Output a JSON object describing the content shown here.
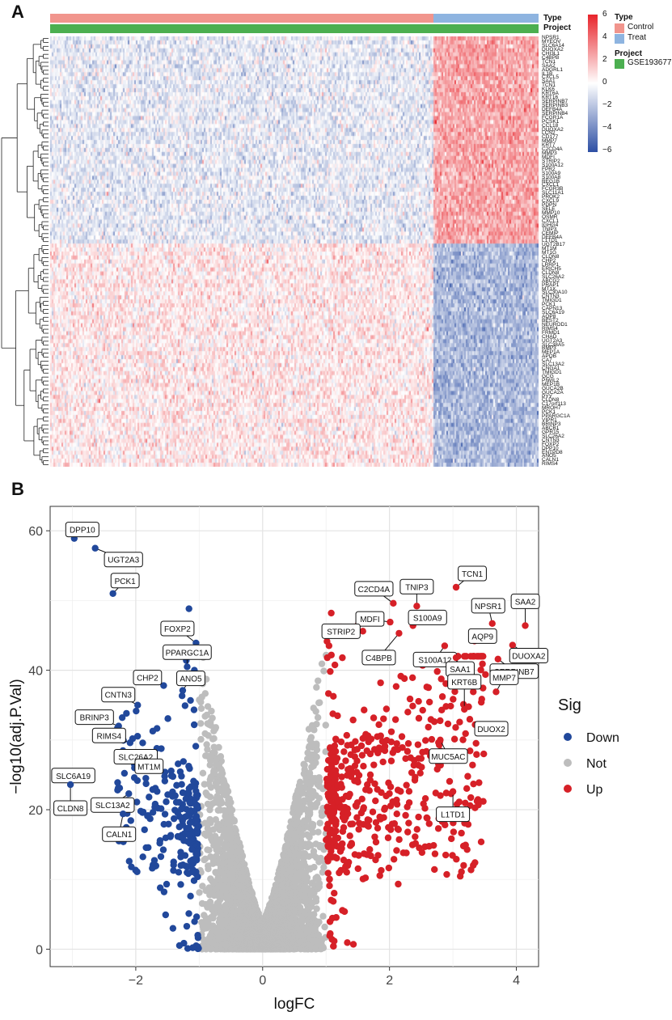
{
  "panels": {
    "a": "A",
    "b": "B"
  },
  "heatmap": {
    "annotation_rows": [
      "Type",
      "Project"
    ],
    "type_legend": {
      "title": "Type",
      "items": [
        {
          "label": "Control",
          "color": "#f1958d"
        },
        {
          "label": "Treat",
          "color": "#8eb4e0"
        }
      ]
    },
    "project_legend": {
      "title": "Project",
      "items": [
        {
          "label": "GSE193677",
          "color": "#4caf50"
        }
      ]
    },
    "colorbar": {
      "ticks": [
        "6",
        "4",
        "2",
        "0",
        "−2",
        "−4",
        "−6"
      ],
      "high_color": "#e8242b",
      "mid_color": "#ffffff",
      "low_color": "#2d4fa4"
    },
    "control_fraction": 0.785,
    "up_genes": [
      "NPSR1",
      "MYEOV",
      "SLC6A14",
      "DUOXA2",
      "CHI3L1",
      "C4BPB",
      "TCN1",
      "SAA2",
      "ADGRL1",
      "IL1B",
      "CXCL5",
      "SAA1",
      "TCN1",
      "KLK6",
      "KRT6A",
      "KRT16",
      "SERPINB7",
      "SERPINB3",
      "DEFB4A",
      "SERPINB4",
      "FCGR1A",
      "PCSK1",
      "CCL18",
      "DUOXA2",
      "LCN2",
      "CD177",
      "MMP7",
      "KRT7",
      "C2CD4A",
      "MMP3",
      "MDFI",
      "STRIP2",
      "S100A12",
      "FPR2",
      "S100A9",
      "S100A8",
      "REG1B",
      "CXCL1",
      "FCGR3B",
      "SLC11A1",
      "PROK2",
      "CXCL9",
      "PDPN",
      "SELE",
      "MMP10",
      "OSMR",
      "CXCL1",
      "IGHG4",
      "TNIP3",
      "CEMIP",
      "DEFB4A",
      "L1TD1"
    ],
    "down_genes": [
      "UGT2B17",
      "MT1M",
      "MT1G",
      "CLDN8",
      "CHP2",
      "LRRP1",
      "ERICH5",
      "CLDN8",
      "SLC26A2",
      "ABCG2",
      "PRAP1",
      "MT1X",
      "SLC30A10",
      "CNTN3",
      "TMIGD1",
      "PCK1",
      "CAPN13",
      "SLC6A19",
      "AQP8",
      "BEST2",
      "NEUROD1",
      "RIMS4",
      "FRMD1",
      "CHAD",
      "UGT2A3",
      "SLC38A5",
      "BMP3",
      "MEP1A",
      "APOB",
      "CA7",
      "SLC13A2",
      "CNGA1",
      "TMIGD1",
      "GCG",
      "PIWIL2",
      "MEP1B",
      "GUCA2B",
      "GUCA2A",
      "PYY",
      "CLDN8",
      "C17orf113",
      "MROH7",
      "PCK1",
      "PPARGC1A",
      "VIPR1",
      "BRINP3",
      "ABCB1",
      "GPR15",
      "SLC26A2",
      "CNTN3",
      "FOXP2",
      "DPP10",
      "ENTPD8",
      "ANO5",
      "CALN1",
      "RIMS4"
    ]
  },
  "chart_data": {
    "type": "scatter",
    "title": "",
    "xlabel": "logFC",
    "ylabel": "−log10(adj.P.Val)",
    "xlim": [
      -3.35,
      4.35
    ],
    "ylim": [
      -2.5,
      63.5
    ],
    "xticks": [
      -2,
      0,
      2,
      4
    ],
    "xtick_labels": [
      "−2",
      "0",
      "2",
      "4"
    ],
    "yticks": [
      0,
      20,
      40,
      60
    ],
    "ytick_labels": [
      "0",
      "20",
      "40",
      "60"
    ],
    "grid": true,
    "legend": {
      "title": "Sig",
      "position": "right",
      "entries": [
        {
          "label": "Down",
          "color": "#21489b"
        },
        {
          "label": "Not",
          "color": "#bdbdbd"
        },
        {
          "label": "Up",
          "color": "#d62027"
        }
      ]
    },
    "labeled_points": [
      {
        "gene": "DPP10",
        "logFC": -2.97,
        "p": 58.9,
        "sig": "Down"
      },
      {
        "gene": "UGT2A3",
        "logFC": -2.64,
        "p": 57.5,
        "sig": "Down"
      },
      {
        "gene": "PCK1",
        "logFC": -2.36,
        "p": 51.0,
        "sig": "Down"
      },
      {
        "gene": "FOXP2",
        "logFC": -1.05,
        "p": 43.9,
        "sig": "Down"
      },
      {
        "gene": "PPARGC1A",
        "logFC": -1.19,
        "p": 40.5,
        "sig": "Down"
      },
      {
        "gene": "ANO5",
        "logFC": -1.26,
        "p": 37.1,
        "sig": "Down"
      },
      {
        "gene": "CHP2",
        "logFC": -1.56,
        "p": 37.8,
        "sig": "Down"
      },
      {
        "gene": "CNTN3",
        "logFC": -1.97,
        "p": 35.0,
        "sig": "Down"
      },
      {
        "gene": "BRINP3",
        "logFC": -2.27,
        "p": 32.0,
        "sig": "Down"
      },
      {
        "gene": "RIMS4",
        "logFC": -2.09,
        "p": 29.6,
        "sig": "Down"
      },
      {
        "gene": "SLC26A2",
        "logFC": -1.81,
        "p": 27.6,
        "sig": "Down"
      },
      {
        "gene": "MT1M",
        "logFC": -2.02,
        "p": 26.0,
        "sig": "Down"
      },
      {
        "gene": "SLC6A19",
        "logFC": -2.73,
        "p": 24.9,
        "sig": "Down"
      },
      {
        "gene": "SLC13A2",
        "logFC": -2.11,
        "p": 22.3,
        "sig": "Down"
      },
      {
        "gene": "CLDN8",
        "logFC": -3.03,
        "p": 23.6,
        "sig": "Down"
      },
      {
        "gene": "CALN1",
        "logFC": -2.2,
        "p": 19.4,
        "sig": "Down"
      },
      {
        "gene": "TCN1",
        "logFC": 3.05,
        "p": 51.9,
        "sig": "Up"
      },
      {
        "gene": "C2CD4A",
        "logFC": 2.06,
        "p": 49.6,
        "sig": "Up"
      },
      {
        "gene": "TNIP3",
        "logFC": 2.43,
        "p": 49.2,
        "sig": "Up"
      },
      {
        "gene": "MDFI",
        "logFC": 2.01,
        "p": 46.9,
        "sig": "Up"
      },
      {
        "gene": "S100A9",
        "logFC": 2.37,
        "p": 46.4,
        "sig": "Up"
      },
      {
        "gene": "NPSR1",
        "logFC": 3.62,
        "p": 46.7,
        "sig": "Up"
      },
      {
        "gene": "SAA2",
        "logFC": 4.14,
        "p": 46.4,
        "sig": "Up"
      },
      {
        "gene": "STRIP2",
        "logFC": 1.58,
        "p": 45.6,
        "sig": "Up"
      },
      {
        "gene": "C4BPB",
        "logFC": 2.15,
        "p": 45.3,
        "sig": "Up"
      },
      {
        "gene": "S100A12",
        "logFC": 2.87,
        "p": 43.5,
        "sig": "Up"
      },
      {
        "gene": "AQP9",
        "logFC": 3.34,
        "p": 44.2,
        "sig": "Up"
      },
      {
        "gene": "DUOXA2",
        "logFC": 3.94,
        "p": 43.6,
        "sig": "Up"
      },
      {
        "gene": "SAA1",
        "logFC": 3.05,
        "p": 41.8,
        "sig": "Up"
      },
      {
        "gene": "SERPINB7",
        "logFC": 3.71,
        "p": 41.6,
        "sig": "Up"
      },
      {
        "gene": "MMP7",
        "logFC": 3.68,
        "p": 36.9,
        "sig": "Up"
      },
      {
        "gene": "KRT6B",
        "logFC": 3.18,
        "p": 34.4,
        "sig": "Up"
      },
      {
        "gene": "DUOX2",
        "logFC": 3.35,
        "p": 32.2,
        "sig": "Up"
      },
      {
        "gene": "MUC5AC",
        "logFC": 2.8,
        "p": 30.0,
        "sig": "Up"
      },
      {
        "gene": "L1TD1",
        "logFC": 3.0,
        "p": 22.6,
        "sig": "Up"
      }
    ],
    "background_points": "simulated cloud of ~5000 genes; |logFC| < 1 grey (Not), logFC > 1 red (Up), logFC < -1 blue (Down)"
  }
}
